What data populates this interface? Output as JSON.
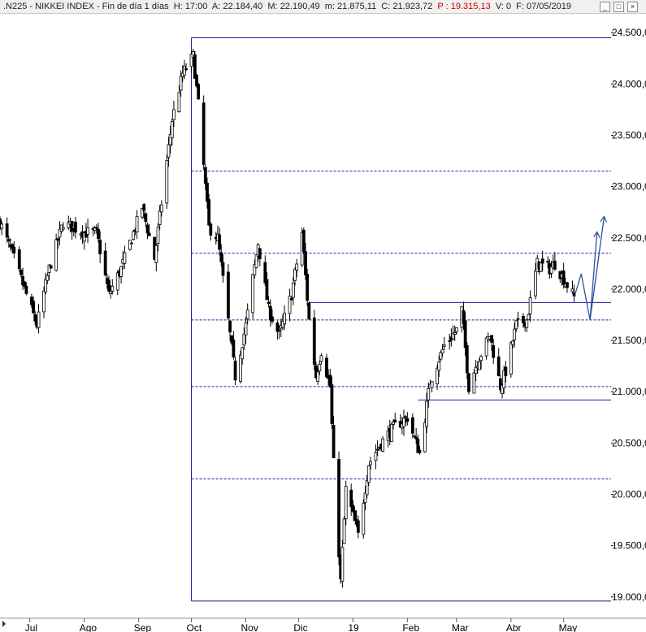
{
  "header": {
    "symbol": ".N225",
    "name": "NIKKEI INDEX",
    "period": "Fin de día 1 días",
    "items": [
      {
        "label": "H:",
        "value": "17:00"
      },
      {
        "label": "A:",
        "value": "22.184,40"
      },
      {
        "label": "M:",
        "value": "22.190,49"
      },
      {
        "label": "m:",
        "value": "21.875,11"
      },
      {
        "label": "C:",
        "value": "21.923,72"
      }
    ],
    "p_label": "P :",
    "p_value": "19.315,13",
    "v_label": "V:",
    "v_value": "0",
    "f_label": "F:",
    "f_value": "07/05/2019"
  },
  "window_buttons": {
    "minimize": "_",
    "restore": "□",
    "close": "×"
  },
  "colors": {
    "background": "#ffffff",
    "candle": "#000000",
    "level_line": "#1a1aa0",
    "arrow": "#2a4f9e",
    "p_value": "#d40000"
  },
  "chart_data": {
    "type": "candlestick",
    "x_type": "date",
    "x_range": [
      "2018-06-14",
      "2019-05-28"
    ],
    "ylim": [
      18880,
      24620
    ],
    "y_ticks": [
      19000,
      19500,
      20000,
      20500,
      21000,
      21500,
      22000,
      22500,
      23000,
      23500,
      24000,
      24500
    ],
    "y_tick_labels": [
      "19.000,0",
      "19.500,0",
      "20.000,0",
      "20.500,0",
      "21.000,0",
      "21.500,0",
      "22.000,0",
      "22.500,0",
      "23.000,0",
      "23.500,0",
      "24.000,0",
      "24.500,0"
    ],
    "x_ticks": [
      {
        "date": "2018-07-01",
        "label": "Jul"
      },
      {
        "date": "2018-08-01",
        "label": "Ago"
      },
      {
        "date": "2018-09-01",
        "label": "Sep"
      },
      {
        "date": "2018-10-01",
        "label": "Oct"
      },
      {
        "date": "2018-11-01",
        "label": "Nov"
      },
      {
        "date": "2018-12-01",
        "label": "Dic"
      },
      {
        "date": "2019-01-01",
        "label": "19"
      },
      {
        "date": "2019-02-01",
        "label": "Feb"
      },
      {
        "date": "2019-03-01",
        "label": "Mar"
      },
      {
        "date": "2019-04-01",
        "label": "Abr"
      },
      {
        "date": "2019-05-01",
        "label": "May"
      }
    ],
    "anchors": [
      [
        "2018-06-14",
        22650
      ],
      [
        "2018-06-22",
        22300
      ],
      [
        "2018-07-05",
        21650
      ],
      [
        "2018-07-12",
        22200
      ],
      [
        "2018-07-20",
        22650
      ],
      [
        "2018-08-01",
        22550
      ],
      [
        "2018-08-08",
        22550
      ],
      [
        "2018-08-15",
        21950
      ],
      [
        "2018-08-22",
        22200
      ],
      [
        "2018-09-03",
        22800
      ],
      [
        "2018-09-10",
        22300
      ],
      [
        "2018-09-20",
        23650
      ],
      [
        "2018-09-26",
        24100
      ],
      [
        "2018-10-02",
        24270
      ],
      [
        "2018-10-05",
        23800
      ],
      [
        "2018-10-11",
        22600
      ],
      [
        "2018-10-16",
        22500
      ],
      [
        "2018-10-26",
        21150
      ],
      [
        "2018-11-01",
        21650
      ],
      [
        "2018-11-08",
        22450
      ],
      [
        "2018-11-14",
        21800
      ],
      [
        "2018-11-20",
        21550
      ],
      [
        "2018-11-27",
        21950
      ],
      [
        "2018-12-03",
        22550
      ],
      [
        "2018-12-07",
        21700
      ],
      [
        "2018-12-11",
        21150
      ],
      [
        "2018-12-14",
        21400
      ],
      [
        "2018-12-19",
        21050
      ],
      [
        "2018-12-21",
        20300
      ],
      [
        "2018-12-25",
        19150
      ],
      [
        "2018-12-28",
        20050
      ],
      [
        "2019-01-04",
        19600
      ],
      [
        "2019-01-10",
        20300
      ],
      [
        "2019-01-17",
        20500
      ],
      [
        "2019-01-24",
        20650
      ],
      [
        "2019-02-01",
        20750
      ],
      [
        "2019-02-08",
        20400
      ],
      [
        "2019-02-14",
        21100
      ],
      [
        "2019-02-22",
        21450
      ],
      [
        "2019-03-01",
        21600
      ],
      [
        "2019-03-04",
        21800
      ],
      [
        "2019-03-08",
        21050
      ],
      [
        "2019-03-13",
        21300
      ],
      [
        "2019-03-20",
        21550
      ],
      [
        "2019-03-26",
        21050
      ],
      [
        "2019-03-29",
        21200
      ],
      [
        "2019-04-04",
        21650
      ],
      [
        "2019-04-10",
        21700
      ],
      [
        "2019-04-16",
        22250
      ],
      [
        "2019-04-23",
        22200
      ],
      [
        "2019-04-26",
        22250
      ],
      [
        "2019-05-07",
        21920
      ]
    ],
    "levels": [
      {
        "type": "solid",
        "value": 24450,
        "from": "2018-10-01",
        "to": "2019-05-28"
      },
      {
        "type": "dashed",
        "value": 23150,
        "from": "2018-10-01",
        "to": "2019-05-28"
      },
      {
        "type": "dashed",
        "value": 22350,
        "from": "2018-10-01",
        "to": "2019-05-28"
      },
      {
        "type": "solid",
        "value": 21870,
        "from": "2018-12-07",
        "to": "2019-05-28"
      },
      {
        "type": "dashed",
        "value": 21700,
        "from": "2018-10-01",
        "to": "2019-05-28"
      },
      {
        "type": "dashed",
        "value": 21050,
        "from": "2018-10-01",
        "to": "2019-05-28"
      },
      {
        "type": "solid",
        "value": 20920,
        "from": "2019-02-07",
        "to": "2019-05-28"
      },
      {
        "type": "dashed",
        "value": 20150,
        "from": "2018-10-01",
        "to": "2019-05-28"
      },
      {
        "type": "solid",
        "value": 18960,
        "from": "2018-10-01",
        "to": "2019-05-28"
      }
    ],
    "vertical_line": {
      "date": "2018-10-01",
      "from": 18960,
      "to": 24450
    },
    "projection_arrows": [
      [
        [
          "2019-05-07",
          21920
        ],
        [
          "2019-05-11",
          22150
        ],
        [
          "2019-05-16",
          21700
        ],
        [
          "2019-05-20",
          22550
        ]
      ],
      [
        [
          "2019-05-16",
          21700
        ],
        [
          "2019-05-24",
          22700
        ]
      ]
    ]
  }
}
